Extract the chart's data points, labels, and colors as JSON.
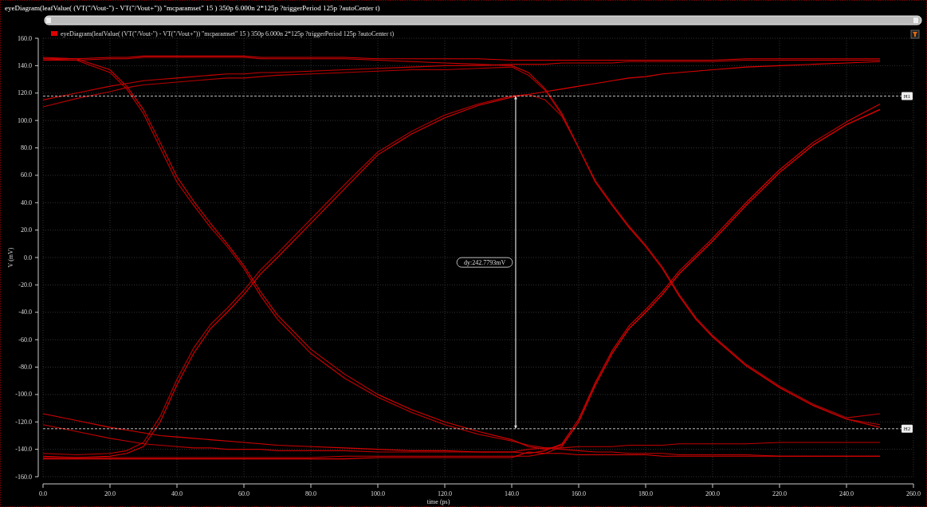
{
  "chart_data": {
    "type": "line",
    "title": "eyeDiagram(leafValue( (VT(\"/Vout-\") - VT(\"/Vout+\")) \"mcparamset\" 15 ) 350p 6.000n 2*125p ?triggerPeriod 125p ?autoCenter t)",
    "xlabel": "time (ps)",
    "ylabel": "V (mV)",
    "x": [
      0,
      10,
      20,
      25,
      30,
      35,
      40,
      45,
      50,
      55,
      60,
      65,
      70,
      80,
      90,
      100,
      110,
      120,
      130,
      140,
      145,
      150,
      155,
      160,
      165,
      170,
      175,
      180,
      185,
      190,
      195,
      200,
      210,
      220,
      230,
      240,
      250
    ],
    "series": [
      {
        "name": "eyeDiagram(leafValue( (VT(\"/Vout-\") - VT(\"/Vout+\")) \"mcparamset\" 15 ) 350p 6.000n 2*125p ?triggerPeriod 125p ?autoCenter t)",
        "color": "#e00000",
        "values": [
          145,
          145,
          146,
          146,
          147,
          147,
          147,
          147,
          147,
          147,
          147,
          146,
          146,
          146,
          146,
          145,
          145,
          145,
          145,
          144,
          144,
          144,
          144,
          144,
          144,
          144,
          144,
          144,
          144,
          144,
          144,
          144,
          145,
          145,
          145,
          145,
          145
        ]
      },
      {
        "color": "#d00000",
        "values": [
          144,
          144,
          145,
          145,
          146,
          146,
          146,
          146,
          146,
          146,
          146,
          145,
          145,
          145,
          145,
          144,
          143,
          142,
          141,
          140,
          135,
          123,
          105,
          80,
          55,
          38,
          22,
          8,
          -8,
          -28,
          -45,
          -58,
          -79,
          -95,
          -108,
          -118,
          -124
        ]
      },
      {
        "color": "#c80000",
        "values": [
          145,
          144,
          135,
          123,
          105,
          80,
          55,
          38,
          22,
          8,
          -8,
          -28,
          -45,
          -70,
          -88,
          -102,
          -113,
          -122,
          -129,
          -134,
          -137,
          -139,
          -140,
          -141,
          -142,
          -142,
          -143,
          -143,
          -143,
          -144,
          -144,
          -144,
          -144,
          -145,
          -145,
          -145,
          -145
        ]
      },
      {
        "color": "#d80000",
        "values": [
          146,
          145,
          137,
          125,
          108,
          84,
          59,
          41,
          25,
          10,
          -6,
          -25,
          -42,
          -67,
          -85,
          -100,
          -111,
          -120,
          -127,
          -133,
          -138,
          -140,
          -137,
          -120,
          -93,
          -70,
          -52,
          -40,
          -27,
          -12,
          0,
          12,
          38,
          62,
          82,
          97,
          108
        ]
      },
      {
        "color": "#e00000",
        "values": [
          -145,
          -146,
          -145,
          -143,
          -138,
          -120,
          -93,
          -70,
          -52,
          -40,
          -27,
          -12,
          0,
          25,
          50,
          75,
          90,
          102,
          111,
          117,
          119,
          121,
          123,
          125,
          127,
          129,
          131,
          132,
          134,
          135,
          136,
          137,
          139,
          140,
          141,
          142,
          143
        ]
      },
      {
        "color": "#c00000",
        "values": [
          -143,
          -144,
          -143,
          -141,
          -135,
          -116,
          -89,
          -66,
          -49,
          -37,
          -24,
          -9,
          3,
          28,
          53,
          77,
          92,
          104,
          112,
          118,
          119,
          115,
          103,
          80,
          55,
          38,
          22,
          8,
          -8,
          -28,
          -45,
          -58,
          -79,
          -95,
          -108,
          -118,
          -122
        ]
      },
      {
        "color": "#e00000",
        "values": [
          -147,
          -147,
          -147,
          -147,
          -147,
          -147,
          -147,
          -147,
          -147,
          -147,
          -147,
          -147,
          -147,
          -147,
          -147,
          -146,
          -146,
          -146,
          -146,
          -146,
          -142,
          -143,
          -143,
          -144,
          -144,
          -144,
          -144,
          -144,
          -145,
          -145,
          -145,
          -145,
          -145,
          -145,
          -145,
          -145,
          -145
        ]
      },
      {
        "color": "#d00000",
        "values": [
          -146,
          -146,
          -146,
          -146,
          -146,
          -146,
          -146,
          -146,
          -146,
          -146,
          -146,
          -146,
          -146,
          -146,
          -145,
          -145,
          -145,
          -145,
          -145,
          -145,
          -145,
          -143,
          -138,
          -120,
          -93,
          -70,
          -52,
          -40,
          -27,
          -12,
          0,
          12,
          38,
          62,
          82,
          97,
          108
        ]
      },
      {
        "color": "#c80000",
        "values": [
          115,
          120,
          125,
          127,
          129,
          130,
          131,
          132,
          133,
          134,
          134,
          135,
          135,
          136,
          137,
          138,
          139,
          140,
          140,
          141,
          141,
          141,
          142,
          142,
          142,
          142,
          143,
          143,
          143,
          143,
          143,
          143,
          144,
          144,
          144,
          144,
          144
        ]
      },
      {
        "color": "#b80000",
        "values": [
          110,
          116,
          121,
          124,
          126,
          127,
          128,
          129,
          130,
          131,
          131,
          132,
          133,
          134,
          135,
          136,
          137,
          137,
          138,
          139,
          133,
          122,
          104,
          80,
          56,
          39,
          23,
          9,
          -7,
          -27,
          -44,
          -57,
          -78,
          -94,
          -107,
          -117,
          -114
        ]
      },
      {
        "color": "#c00000",
        "values": [
          -122,
          -127,
          -132,
          -134,
          -136,
          -137,
          -138,
          -139,
          -139,
          -140,
          -140,
          -140,
          -141,
          -141,
          -141,
          -142,
          -142,
          -142,
          -142,
          -142,
          -140,
          -139,
          -139,
          -138,
          -138,
          -138,
          -137,
          -137,
          -137,
          -136,
          -136,
          -136,
          -136,
          -135,
          -135,
          -135,
          -135
        ]
      },
      {
        "color": "#d80000",
        "values": [
          -114,
          -119,
          -124,
          -126,
          -128,
          -130,
          -131,
          -132,
          -133,
          -134,
          -135,
          -136,
          -137,
          -138,
          -139,
          -140,
          -141,
          -141,
          -142,
          -142,
          -143,
          -141,
          -136,
          -118,
          -91,
          -68,
          -50,
          -38,
          -25,
          -10,
          2,
          14,
          40,
          64,
          84,
          99,
          112
        ]
      }
    ],
    "xlim": [
      0,
      260
    ],
    "ylim": [
      -160,
      160
    ],
    "xticks": [
      {
        "value": 0,
        "label": "0.0"
      },
      {
        "value": 20,
        "label": "20.0"
      },
      {
        "value": 40,
        "label": "40.0"
      },
      {
        "value": 60,
        "label": "60.0"
      },
      {
        "value": 80,
        "label": "80.0"
      },
      {
        "value": 100,
        "label": "100.0"
      },
      {
        "value": 120,
        "label": "120.0"
      },
      {
        "value": 140,
        "label": "140.0"
      },
      {
        "value": 160,
        "label": "160.0"
      },
      {
        "value": 180,
        "label": "180.0"
      },
      {
        "value": 200,
        "label": "200.0"
      },
      {
        "value": 220,
        "label": "220.0"
      },
      {
        "value": 240,
        "label": "240.0"
      },
      {
        "value": 260,
        "label": "260.0"
      }
    ],
    "yticks": [
      {
        "value": -160,
        "label": "-160.0"
      },
      {
        "value": -140,
        "label": "-140.0"
      },
      {
        "value": -120,
        "label": "-120.0"
      },
      {
        "value": -100,
        "label": "-100.0"
      },
      {
        "value": -80,
        "label": "-80.0"
      },
      {
        "value": -60,
        "label": "-60.0"
      },
      {
        "value": -40,
        "label": "-40.0"
      },
      {
        "value": -20,
        "label": "-20.0"
      },
      {
        "value": 0,
        "label": "0.0"
      },
      {
        "value": 20,
        "label": "20.0"
      },
      {
        "value": 40,
        "label": "40.0"
      },
      {
        "value": 60,
        "label": "60.0"
      },
      {
        "value": 80,
        "label": "80.0"
      },
      {
        "value": 100,
        "label": "100.0"
      },
      {
        "value": 120,
        "label": "120.0"
      },
      {
        "value": 140,
        "label": "140.0"
      },
      {
        "value": 160,
        "label": "160.0"
      }
    ],
    "ref_lines": [
      {
        "axis": "y",
        "value": 117.8,
        "label": "H1",
        "color": "#bbbbbb",
        "line_style": "dashed"
      },
      {
        "axis": "y",
        "value": -124.98,
        "label": "H2",
        "color": "#bbbbbb",
        "line_style": "dashed"
      }
    ],
    "annotations": [
      "dy:242.7793mV"
    ],
    "grid": true,
    "legend": "top left",
    "line_style": "solid",
    "marker": "none"
  }
}
